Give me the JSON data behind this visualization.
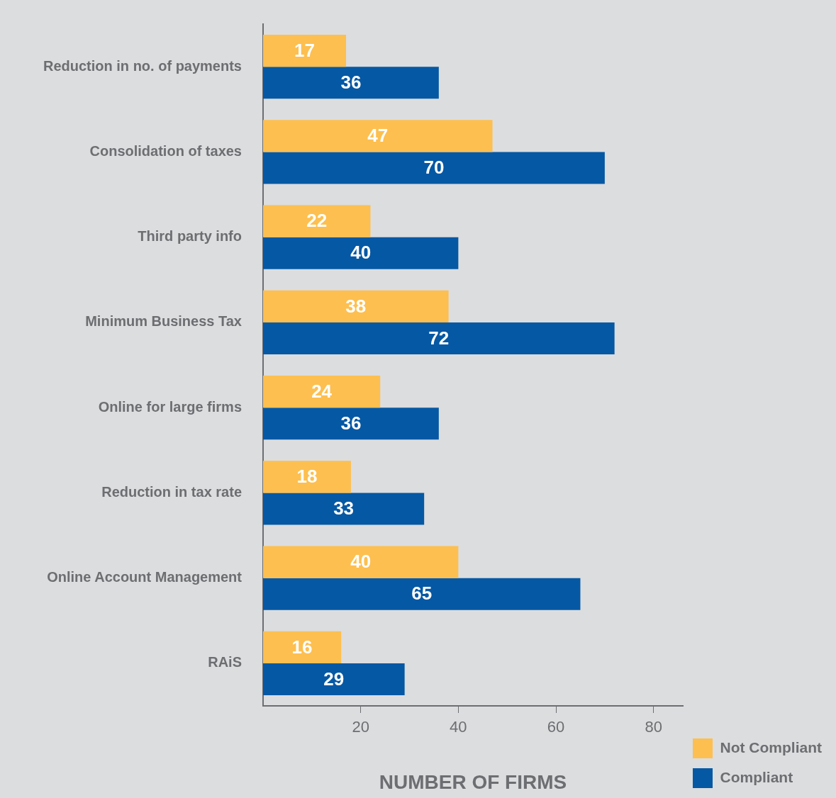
{
  "chart_data": {
    "type": "bar",
    "orientation": "horizontal",
    "xlabel": "NUMBER OF FIRMS",
    "categories": [
      "Reduction in no. of payments",
      "Consolidation of taxes",
      "Third party info",
      "Minimum Business Tax",
      "Online for large firms",
      "Reduction in tax rate",
      "Online Account Management",
      "RAiS"
    ],
    "series": [
      {
        "name": "Not Compliant",
        "color": "#fdbf4f",
        "values": [
          17,
          47,
          22,
          38,
          24,
          18,
          40,
          16
        ]
      },
      {
        "name": "Compliant",
        "color": "#0558a4",
        "values": [
          36,
          70,
          40,
          72,
          36,
          33,
          65,
          29
        ]
      }
    ],
    "xlim": [
      0,
      86
    ],
    "xticks": [
      20,
      40,
      60,
      80
    ],
    "grid": false,
    "legend": "bottom right",
    "data_labels": true
  }
}
